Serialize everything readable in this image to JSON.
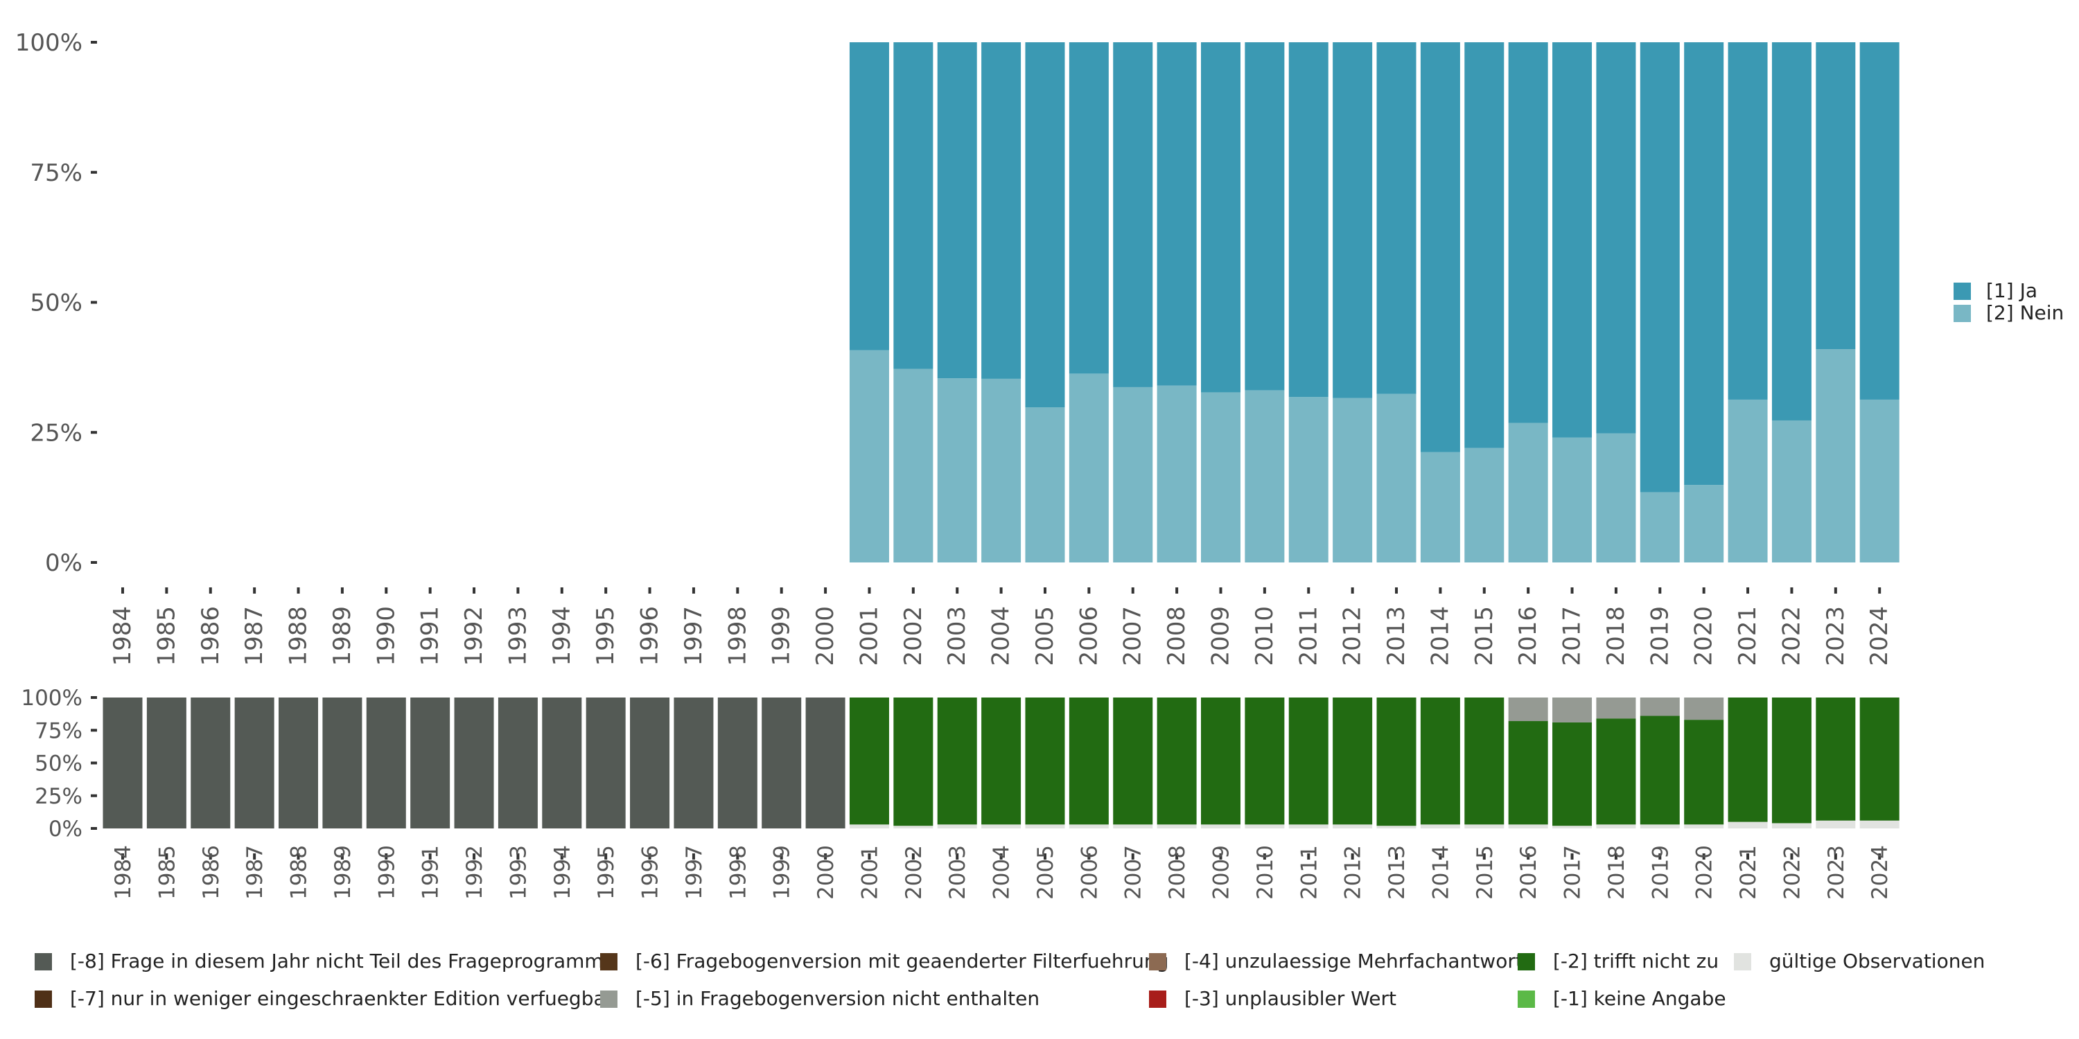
{
  "chart_data": [
    {
      "type": "bar",
      "stacked": true,
      "normalized": true,
      "categories": [
        "1984",
        "1985",
        "1986",
        "1987",
        "1988",
        "1989",
        "1990",
        "1991",
        "1992",
        "1993",
        "1994",
        "1995",
        "1996",
        "1997",
        "1998",
        "1999",
        "2000",
        "2001",
        "2002",
        "2003",
        "2004",
        "2005",
        "2006",
        "2007",
        "2008",
        "2009",
        "2010",
        "2011",
        "2012",
        "2013",
        "2014",
        "2015",
        "2016",
        "2017",
        "2018",
        "2019",
        "2020",
        "2021",
        "2022",
        "2023",
        "2024"
      ],
      "y_ticks": [
        "0%",
        "25%",
        "50%",
        "75%",
        "100%"
      ],
      "ylim": [
        0,
        100
      ],
      "series": [
        {
          "name": "[2] Nein",
          "color": "#79b7c5",
          "values": [
            null,
            null,
            null,
            null,
            null,
            null,
            null,
            null,
            null,
            null,
            null,
            null,
            null,
            null,
            null,
            null,
            null,
            40.8,
            37.2,
            35.4,
            35.3,
            29.8,
            36.3,
            33.7,
            34.0,
            32.7,
            33.1,
            31.8,
            31.6,
            32.4,
            21.2,
            22.0,
            26.8,
            24.0,
            24.8,
            13.5,
            14.9,
            31.3,
            27.3,
            41.0,
            31.3
          ]
        },
        {
          "name": "[1] Ja",
          "color": "#3b99b3",
          "values": [
            null,
            null,
            null,
            null,
            null,
            null,
            null,
            null,
            null,
            null,
            null,
            null,
            null,
            null,
            null,
            null,
            null,
            59.2,
            62.8,
            64.6,
            64.7,
            70.2,
            63.7,
            66.3,
            66.0,
            67.3,
            66.9,
            68.2,
            68.4,
            67.6,
            78.8,
            78.0,
            73.2,
            76.0,
            75.2,
            86.5,
            85.1,
            68.7,
            72.7,
            59.0,
            68.7
          ]
        }
      ],
      "legend": {
        "position": "right",
        "items": [
          {
            "label": "[1] Ja",
            "color": "#3b99b3"
          },
          {
            "label": "[2] Nein",
            "color": "#79b7c5"
          }
        ]
      }
    },
    {
      "type": "bar",
      "stacked": true,
      "normalized": true,
      "categories": [
        "1984",
        "1985",
        "1986",
        "1987",
        "1988",
        "1989",
        "1990",
        "1991",
        "1992",
        "1993",
        "1994",
        "1995",
        "1996",
        "1997",
        "1998",
        "1999",
        "2000",
        "2001",
        "2002",
        "2003",
        "2004",
        "2005",
        "2006",
        "2007",
        "2008",
        "2009",
        "2010",
        "2011",
        "2012",
        "2013",
        "2014",
        "2015",
        "2016",
        "2017",
        "2018",
        "2019",
        "2020",
        "2021",
        "2022",
        "2023",
        "2024"
      ],
      "y_ticks": [
        "0%",
        "25%",
        "50%",
        "75%",
        "100%"
      ],
      "ylim": [
        0,
        100
      ],
      "series": [
        {
          "name": "gültige Observationen",
          "color": "#e1e3e0",
          "values": [
            0,
            0,
            0,
            0,
            0,
            0,
            0,
            0,
            0,
            0,
            0,
            0,
            0,
            0,
            0,
            0,
            0,
            3,
            2,
            3,
            3,
            3,
            3,
            3,
            3,
            3,
            3,
            3,
            3,
            2,
            3,
            3,
            3,
            2,
            3,
            3,
            3,
            5,
            4,
            6,
            6
          ]
        },
        {
          "name": "[-2] trifft nicht zu",
          "color": "#226b12",
          "values": [
            0,
            0,
            0,
            0,
            0,
            0,
            0,
            0,
            0,
            0,
            0,
            0,
            0,
            0,
            0,
            0,
            0,
            97,
            98,
            97,
            97,
            97,
            97,
            97,
            97,
            97,
            97,
            97,
            97,
            98,
            97,
            97,
            79,
            79,
            81,
            83,
            80,
            95,
            96,
            94,
            94
          ]
        },
        {
          "name": "[-5] in Fragebogenversion nicht enthalten",
          "color": "#959a93",
          "values": [
            0,
            0,
            0,
            0,
            0,
            0,
            0,
            0,
            0,
            0,
            0,
            0,
            0,
            0,
            0,
            0,
            0,
            0,
            0,
            0,
            0,
            0,
            0,
            0,
            0,
            0,
            0,
            0,
            0,
            0,
            0,
            0,
            18,
            19,
            16,
            14,
            17,
            0,
            0,
            0,
            0
          ]
        },
        {
          "name": "[-8] Frage in diesem Jahr nicht Teil des Frageprogramms",
          "color": "#545a55",
          "values": [
            100,
            100,
            100,
            100,
            100,
            100,
            100,
            100,
            100,
            100,
            100,
            100,
            100,
            100,
            100,
            100,
            100,
            0,
            0,
            0,
            0,
            0,
            0,
            0,
            0,
            0,
            0,
            0,
            0,
            0,
            0,
            0,
            0,
            0,
            0,
            0,
            0,
            0,
            0,
            0,
            0
          ]
        }
      ]
    }
  ],
  "legend_bottom": [
    {
      "label": "[-8] Frage in diesem Jahr nicht Teil des Frageprogramms",
      "color": "#545a55"
    },
    {
      "label": "[-7] nur in weniger eingeschraenkter Edition verfuegbar",
      "color": "#4f3017"
    },
    {
      "label": "[-6] Fragebogenversion mit geaenderter Filterfuehrung",
      "color": "#55361a"
    },
    {
      "label": "[-5] in Fragebogenversion nicht enthalten",
      "color": "#959a93"
    },
    {
      "label": "[-4] unzulaessige Mehrfachantwort",
      "color": "#8c6a52"
    },
    {
      "label": "[-3] unplausibler Wert",
      "color": "#a81e1a"
    },
    {
      "label": "[-2] trifft nicht zu",
      "color": "#226b12"
    },
    {
      "label": "[-1] keine Angabe",
      "color": "#5bb947"
    },
    {
      "label": "gültige Observationen",
      "color": "#e1e3e0"
    }
  ]
}
